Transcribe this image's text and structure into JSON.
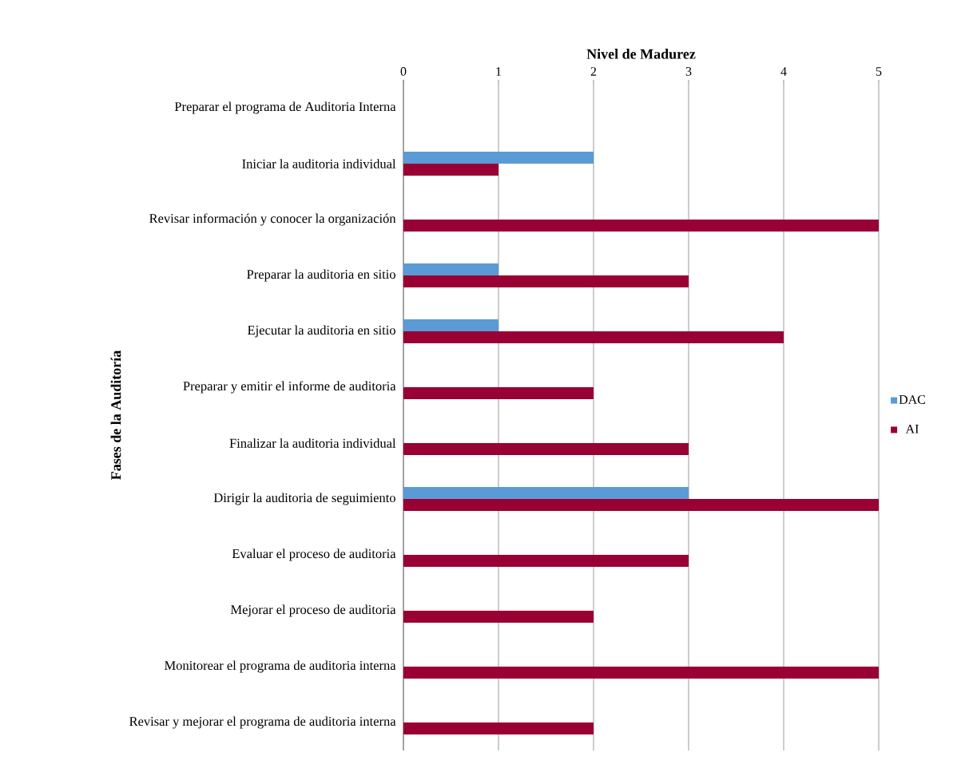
{
  "chart_data": {
    "type": "bar",
    "orientation": "horizontal",
    "xlabel": "Nivel de Madurez",
    "ylabel": "Fases de la Auditoría",
    "categories": [
      "Preparar el programa de Auditoria Interna",
      "Iniciar la auditoria individual",
      "Revisar información y conocer la organización",
      "Preparar la auditoria en sitio",
      "Ejecutar la auditoria en sitio",
      "Preparar y emitir el informe de auditoria",
      "Finalizar la auditoria individual",
      "Dirigir la auditoria de seguimiento",
      "Evaluar el proceso de auditoria",
      "Mejorar el proceso de auditoria",
      "Monitorear el programa de auditoria interna",
      "Revisar y mejorar el programa de auditoria interna"
    ],
    "series": [
      {
        "name": "DAC",
        "color": "#5b9bd5",
        "values": [
          0,
          2,
          0,
          1,
          1,
          0,
          0,
          3,
          0,
          0,
          0,
          0
        ]
      },
      {
        "name": "AI",
        "color": "#990033",
        "values": [
          0,
          1,
          5,
          3,
          4,
          2,
          3,
          5,
          3,
          2,
          5,
          2
        ]
      }
    ],
    "xlim": [
      0,
      5
    ],
    "xticks": [
      0,
      1,
      2,
      3,
      4,
      5
    ],
    "grid": "x",
    "legend": "right"
  }
}
